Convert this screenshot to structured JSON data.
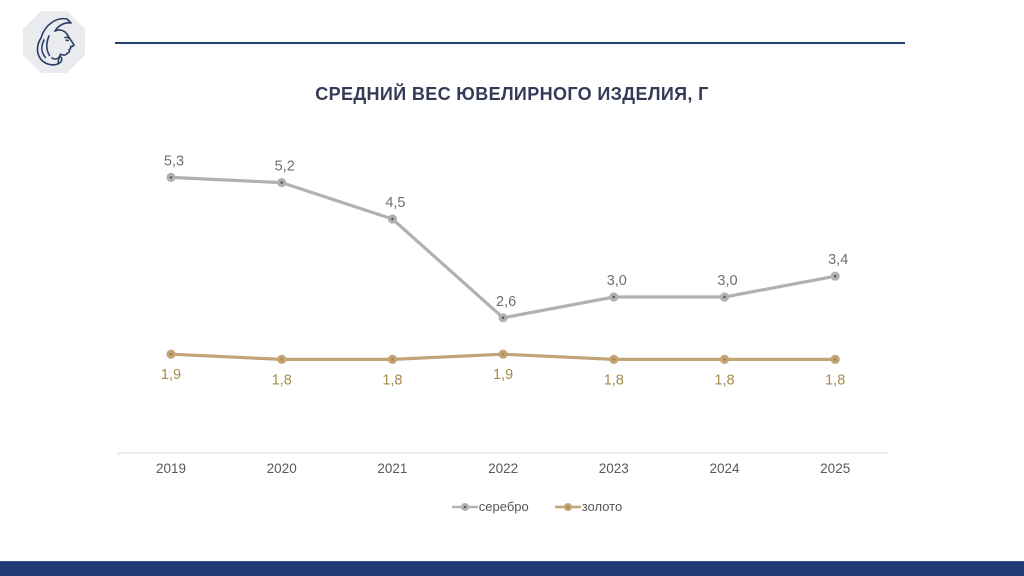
{
  "branding": {
    "logo_name": "assay-chamber-woman-profile-logo",
    "accent_navy": "#24406f",
    "footer_bar_color": "#1f3a75",
    "logo_octagon_fill": "#e9ebee",
    "logo_art_color": "#2c3c68"
  },
  "chart_data": {
    "type": "line",
    "title": "СРЕДНИЙ ВЕС ЮВЕЛИРНОГО ИЗДЕЛИЯ, Г",
    "categories": [
      "2019",
      "2020",
      "2021",
      "2022",
      "2023",
      "2024",
      "2025"
    ],
    "series": [
      {
        "name": "серебро",
        "values": [
          5.3,
          5.2,
          4.5,
          2.6,
          3.0,
          3.0,
          3.4
        ],
        "color": "#b1b1b1",
        "marker_center_color": "#4a6468",
        "label_color": "#6f6f6f",
        "label_position": "above"
      },
      {
        "name": "золото",
        "values": [
          1.9,
          1.8,
          1.8,
          1.9,
          1.8,
          1.8,
          1.8
        ],
        "color": "#c1a478",
        "marker_center_color": "#b87a36",
        "label_color": "#a58a4b",
        "label_position": "below"
      }
    ],
    "decimal_separator": ",",
    "ylim": [
      0,
      6.5
    ],
    "grid": false,
    "legend_position": "bottom",
    "axis_color": "#d9d9d9",
    "tick_label_color": "#5a5a5a"
  }
}
